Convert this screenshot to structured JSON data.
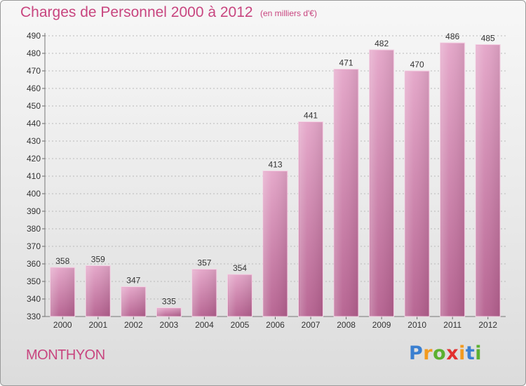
{
  "title": "Charges de Personnel 2000 à 2012",
  "subtitle": "(en milliers d'€)",
  "town": "MONTHYON",
  "logo": {
    "letters": [
      "P",
      "r",
      "o",
      "x",
      "i",
      "t",
      "i"
    ],
    "colors": [
      "#3a7fd0",
      "#f29a1f",
      "#5bb030",
      "#e2302f",
      "#f29a1f",
      "#3a7fd0",
      "#5bb030"
    ]
  },
  "colors": {
    "bar": "#c8679f",
    "bar_light": "#e6aacb",
    "text_accent": "#c8457f"
  },
  "chart_data": {
    "type": "bar",
    "title": "Charges de Personnel 2000 à 2012",
    "subtitle": "(en milliers d'€)",
    "categories": [
      "2000",
      "2001",
      "2002",
      "2003",
      "2004",
      "2005",
      "2006",
      "2007",
      "2008",
      "2009",
      "2010",
      "2011",
      "2012"
    ],
    "values": [
      358,
      359,
      347,
      335,
      357,
      354,
      413,
      441,
      471,
      482,
      470,
      486,
      485
    ],
    "ylim": [
      330,
      490
    ],
    "yticks": [
      330,
      340,
      350,
      360,
      370,
      380,
      390,
      400,
      410,
      420,
      430,
      440,
      450,
      460,
      470,
      480,
      490
    ],
    "grid": true,
    "xlabel": "",
    "ylabel": ""
  }
}
